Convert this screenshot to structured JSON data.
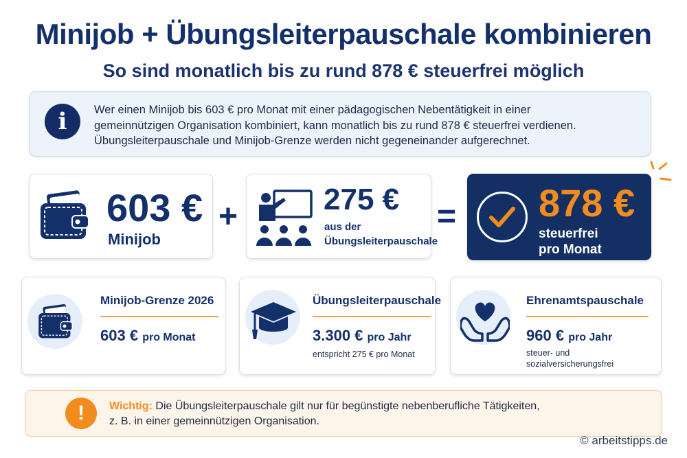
{
  "header": {
    "title": "Minijob + Übungsleiterpauschale kombinieren",
    "subtitle": "So sind monatlich bis zu rund 878 € steuerfrei möglich"
  },
  "info": {
    "icon": "info-icon",
    "lines": [
      "Wer einen Minijob bis 603 € pro Monat mit einer pädagogischen Nebentätigkeit in einer",
      "gemeinnützigen Organisation kombiniert, kann monatlich bis zu rund 878 € steuerfrei verdienen.",
      "Übungsleiterpauschale und Minijob-Grenze werden nicht gegeneinander aufgerechnet."
    ]
  },
  "equation": {
    "minijob": {
      "amount": "603 €",
      "label": "Minijob",
      "icon": "wallet-icon"
    },
    "plus": "+",
    "pauschale": {
      "amount": "275 €",
      "label_line1": "aus der",
      "label_line2": "Übungsleiterpauschale",
      "icon": "teacher-icon"
    },
    "equals": "=",
    "result": {
      "amount": "878 €",
      "line1": "steuerfrei",
      "line2": "pro Monat",
      "icon": "checkmark-icon"
    }
  },
  "cards": [
    {
      "title": "Minijob-Grenze 2026",
      "value": "603 €",
      "unit": "pro Monat",
      "note1": "",
      "note2": "",
      "icon": "wallet-icon"
    },
    {
      "title": "Übungsleiterpauschale",
      "value": "3.300 €",
      "unit": "pro Jahr",
      "note1": "entspricht 275 € pro Monat",
      "note2": "",
      "icon": "graduation-cap-icon"
    },
    {
      "title": "Ehrenamtspauschale",
      "value": "960 €",
      "unit": "pro Jahr",
      "note1": "steuer- und",
      "note2": "sozialversicherungsfrei",
      "icon": "heart-hands-icon"
    }
  ],
  "warning": {
    "label": "Wichtig:",
    "line1": "Die Übungsleiterpauschale gilt nur für begünstigte nebenberufliche Tätigkeiten,",
    "line2": "z. B. in einer gemeinnützigen Organisation.",
    "icon": "exclamation-icon"
  },
  "credit": "© arbeitstipps.de",
  "colors": {
    "navy": "#14306b",
    "orange": "#f28c1f",
    "info_bg": "#edf3fb",
    "warn_bg": "#fdf4ea"
  }
}
